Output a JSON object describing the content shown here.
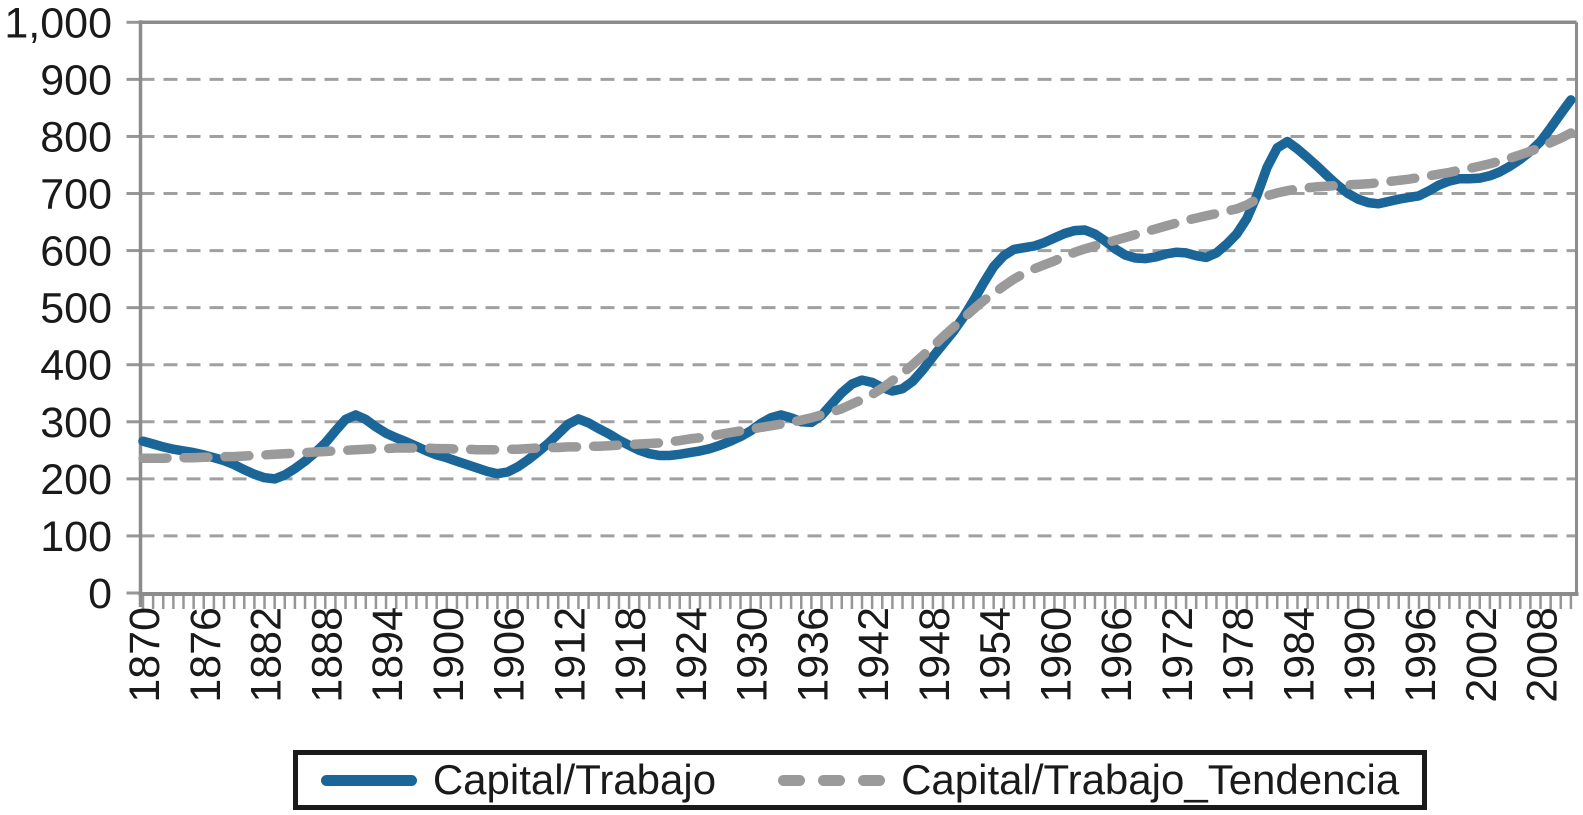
{
  "colors": {
    "line_blue": "#1b6698",
    "trend_gray": "#9a9a9a",
    "grid_gray": "#a0a0a0",
    "axis_gray": "#8c8c8c",
    "tick_gray": "#969696",
    "text_black": "#1a1a1a",
    "legend_border": "#1a1a1a",
    "background": "#ffffff"
  },
  "chart_data": {
    "type": "line",
    "title": "",
    "xlabel": "",
    "ylabel": "",
    "grid": "horizontal-dashed",
    "legend_position": "bottom",
    "ylim": [
      0,
      1000
    ],
    "ytick_step": 100,
    "ytick_labels": [
      "0",
      "100",
      "200",
      "300",
      "400",
      "500",
      "600",
      "700",
      "800",
      "900",
      "1,000"
    ],
    "years": {
      "start": 1870,
      "end": 2011,
      "step": 1
    },
    "xtick_label_years": [
      1870,
      1876,
      1882,
      1888,
      1894,
      1900,
      1906,
      1912,
      1918,
      1924,
      1930,
      1936,
      1942,
      1948,
      1954,
      1960,
      1966,
      1972,
      1978,
      1984,
      1990,
      1996,
      2002,
      2008
    ],
    "series": [
      {
        "name": "Capital/Trabajo",
        "style": "solid",
        "color": "#1b6698",
        "values": [
          266,
          261,
          256,
          252,
          249,
          246,
          242,
          237,
          232,
          225,
          216,
          208,
          202,
          200,
          207,
          218,
          231,
          246,
          263,
          284,
          304,
          312,
          304,
          291,
          280,
          272,
          265,
          257,
          249,
          242,
          237,
          231,
          225,
          219,
          213,
          209,
          212,
          221,
          233,
          247,
          262,
          279,
          296,
          305,
          298,
          288,
          279,
          268,
          259,
          250,
          244,
          241,
          241,
          243,
          246,
          249,
          253,
          259,
          266,
          274,
          284,
          297,
          307,
          312,
          307,
          300,
          299,
          311,
          331,
          351,
          366,
          373,
          369,
          360,
          354,
          358,
          371,
          391,
          414,
          436,
          458,
          483,
          512,
          543,
          572,
          591,
          602,
          605,
          608,
          614,
          622,
          630,
          635,
          636,
          629,
          617,
          603,
          592,
          587,
          586,
          589,
          594,
          597,
          596,
          591,
          588,
          596,
          611,
          629,
          656,
          697,
          746,
          780,
          791,
          778,
          763,
          747,
          730,
          714,
          700,
          690,
          684,
          682,
          686,
          690,
          693,
          696,
          705,
          715,
          722,
          726,
          726,
          727,
          731,
          738,
          748,
          760,
          774,
          791,
          815,
          840,
          864
        ]
      },
      {
        "name": "Capital/Trabajo_Tendencia",
        "style": "dashed",
        "color": "#9a9a9a",
        "values": [
          236,
          236,
          236,
          237,
          237,
          237,
          238,
          238,
          239,
          239,
          240,
          241,
          242,
          243,
          244,
          245,
          246,
          247,
          248,
          249,
          250,
          251,
          252,
          253,
          253,
          254,
          254,
          254,
          254,
          253,
          253,
          252,
          252,
          251,
          251,
          251,
          252,
          252,
          253,
          254,
          255,
          255,
          256,
          256,
          257,
          257,
          258,
          259,
          260,
          261,
          262,
          263,
          265,
          267,
          270,
          272,
          275,
          278,
          281,
          284,
          287,
          290,
          293,
          296,
          299,
          303,
          307,
          312,
          317,
          323,
          331,
          339,
          348,
          359,
          372,
          385,
          400,
          416,
          432,
          449,
          465,
          481,
          497,
          512,
          525,
          538,
          550,
          560,
          568,
          575,
          582,
          590,
          597,
          603,
          608,
          613,
          618,
          623,
          628,
          633,
          638,
          643,
          648,
          653,
          657,
          661,
          665,
          669,
          673,
          680,
          690,
          696,
          701,
          705,
          708,
          710,
          712,
          713,
          714,
          715,
          716,
          717,
          719,
          721,
          723,
          725,
          728,
          731,
          734,
          737,
          741,
          744,
          748,
          752,
          757,
          762,
          768,
          774,
          781,
          789,
          797,
          806
        ]
      }
    ]
  }
}
